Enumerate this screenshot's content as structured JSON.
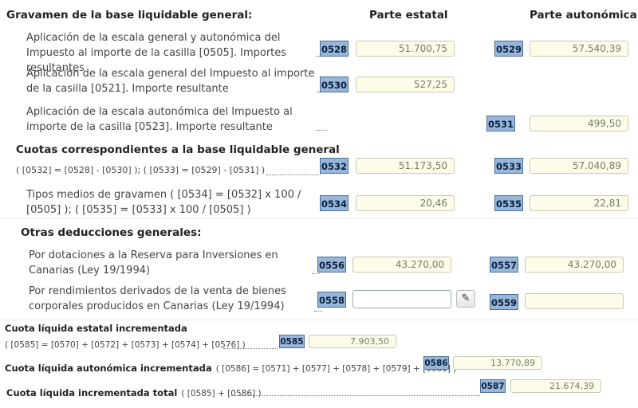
{
  "header": {
    "section1_title": "Gravamen de la base liquidable general:",
    "col_estatal": "Parte estatal",
    "col_autonomica": "Parte autonómica"
  },
  "rows": {
    "r1": {
      "desc": "Aplicación de la escala general y autonómica del Impuesto al importe de la casilla [0505]. Importes resultantes",
      "code_a": "0528",
      "val_a": "51.700,75",
      "code_b": "0529",
      "val_b": "57.540,39"
    },
    "r2": {
      "desc": "Aplicación de la escala general del Impuesto al importe de la casilla [0521]. Importe resultante",
      "code_a": "0530",
      "val_a": "527,25"
    },
    "r3": {
      "desc": "Aplicación de la escala autonómica del Impuesto al importe de la casilla [0523]. Importe resultante",
      "code_b": "0531",
      "val_b": "499,50"
    },
    "cuotas": {
      "title": "Cuotas correspondientes a la base liquidable general",
      "formula": "( [0532] = [0528] - [0530] ); ( [0533] = [0529] - [0531] )",
      "code_a": "0532",
      "val_a": "51.173,50",
      "code_b": "0533",
      "val_b": "57.040,89"
    },
    "tipos": {
      "desc": "Tipos medios de gravamen ( [0534] = [0532] x 100 / [0505] ); ( [0535] = [0533] x 100 / [0505] )",
      "code_a": "0534",
      "val_a": "20,46",
      "code_b": "0535",
      "val_b": "22,81"
    }
  },
  "otras": {
    "title": "Otras deducciones generales:",
    "r1": {
      "desc": "Por dotaciones a la Reserva para Inversiones en Canarias (Ley 19/1994)",
      "code_a": "0556",
      "val_a": "43.270,00",
      "code_b": "0557",
      "val_b": "43.270,00"
    },
    "r2": {
      "desc": "Por rendimientos derivados de la venta de bienes corporales producidos en Canarias (Ley 19/1994)",
      "code_a": "0558",
      "val_a": "",
      "edit_icon": "pencil-icon",
      "code_b": "0559",
      "val_b": ""
    }
  },
  "totales": {
    "estatal": {
      "title": "Cuota líquida estatal incrementada",
      "formula": "( [0585] = [0570] + [0572] + [0573] + [0574] + [0576] )",
      "code": "0585",
      "val": "7.903,50"
    },
    "autonomica": {
      "title": "Cuota líquida autonómica incrementada",
      "formula": "( [0586] = [0571] + [0577] + [0578] + [0579] + [0581] )",
      "code": "0586",
      "val": "13.770,89"
    },
    "total": {
      "title": "Cuota líquida incrementada total",
      "formula": "( [0585] + [0586] )",
      "code": "0587",
      "val": "21.674,39"
    }
  }
}
